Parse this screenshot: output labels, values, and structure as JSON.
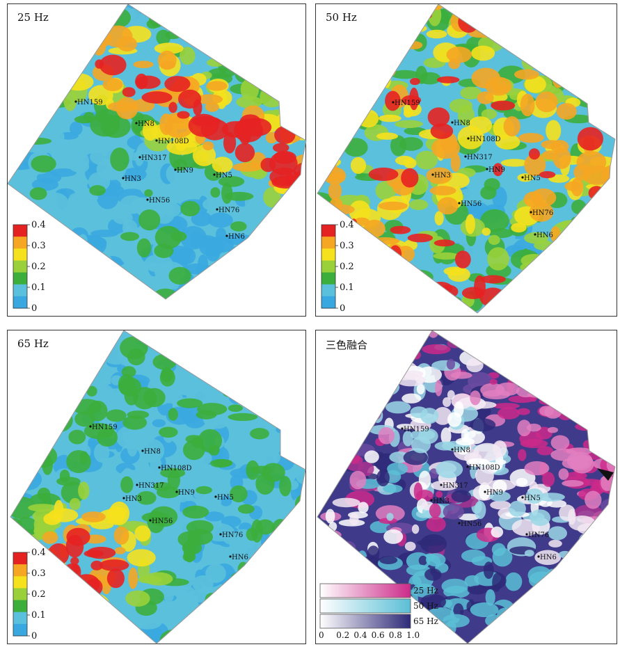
{
  "panels": [
    {
      "id": "p25",
      "title": "25 Hz",
      "type": "heat",
      "seed": 11,
      "variant": "25"
    },
    {
      "id": "p50",
      "title": "50 Hz",
      "type": "heat",
      "seed": 23,
      "variant": "50"
    },
    {
      "id": "p65",
      "title": "65 Hz",
      "type": "heat",
      "seed": 37,
      "variant": "65"
    },
    {
      "id": "pfuse",
      "title": "三色融合",
      "type": "fusion",
      "seed": 51,
      "variant": "fuse"
    }
  ],
  "wells": [
    "HN159",
    "HN8",
    "HN108D",
    "HN317",
    "HN3",
    "HN9",
    "HN5",
    "HN56",
    "HN76",
    "HN6"
  ],
  "colorbar": {
    "ticks": [
      "0",
      "0.1",
      "0.2",
      "0.3",
      "0.4"
    ],
    "colors": [
      "#3aa8e0",
      "#5bc0dc",
      "#3cae3c",
      "#9ad13b",
      "#f5e11d",
      "#f5a623",
      "#e52222"
    ]
  },
  "fusion_legend": {
    "rows": [
      {
        "label": "25 Hz",
        "color": "#cc2a8a"
      },
      {
        "label": "50 Hz",
        "color": "#5bbfd6"
      },
      {
        "label": "65 Hz",
        "color": "#2e2a78"
      }
    ],
    "ticks": [
      "0",
      "0.2",
      "0.4",
      "0.6",
      "0.8",
      "1.0"
    ]
  }
}
